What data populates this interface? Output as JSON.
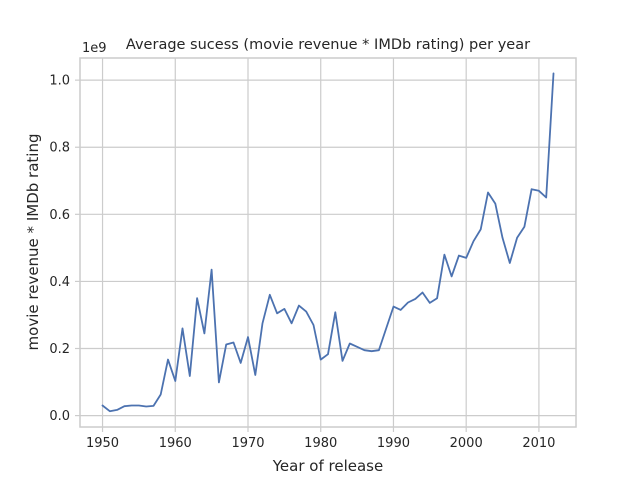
{
  "chart_data": {
    "type": "line",
    "title": "Average sucess (movie revenue * IMDb rating) per year",
    "xlabel": "Year of release",
    "ylabel": "movie revenue * IMDb rating",
    "y_offset_label": "1e9",
    "xlim": [
      1946.9,
      2015.1
    ],
    "ylim": [
      -0.034,
      1.066
    ],
    "x_ticks": [
      1950,
      1960,
      1970,
      1980,
      1990,
      2000,
      2010
    ],
    "x_tick_labels": [
      "1950",
      "1960",
      "1970",
      "1980",
      "1990",
      "2000",
      "2010"
    ],
    "y_ticks": [
      0.0,
      0.2,
      0.4,
      0.6,
      0.8,
      1.0
    ],
    "y_tick_labels": [
      "0.0",
      "0.2",
      "0.4",
      "0.6",
      "0.8",
      "1.0"
    ],
    "grid": true,
    "color": "#4c72b0",
    "series": [
      {
        "x": [
          1950,
          1951,
          1952,
          1953,
          1954,
          1955,
          1956,
          1957,
          1958,
          1959,
          1960,
          1961,
          1962,
          1963,
          1964,
          1965,
          1966,
          1967,
          1968,
          1969,
          1970,
          1971,
          1972,
          1973,
          1974,
          1975,
          1976,
          1977,
          1978,
          1979,
          1980,
          1981,
          1982,
          1983,
          1984,
          1985,
          1986,
          1987,
          1988,
          1989,
          1990,
          1991,
          1992,
          1993,
          1994,
          1995,
          1996,
          1997,
          1998,
          1999,
          2000,
          2001,
          2002,
          2003,
          2004,
          2005,
          2006,
          2007,
          2008,
          2009,
          2010,
          2011,
          2012
        ],
        "y": [
          0.03,
          0.013,
          0.017,
          0.028,
          0.03,
          0.03,
          0.027,
          0.029,
          0.063,
          0.167,
          0.103,
          0.26,
          0.118,
          0.35,
          0.245,
          0.435,
          0.099,
          0.212,
          0.218,
          0.157,
          0.234,
          0.121,
          0.275,
          0.36,
          0.305,
          0.318,
          0.275,
          0.328,
          0.31,
          0.27,
          0.167,
          0.183,
          0.308,
          0.163,
          0.215,
          0.205,
          0.195,
          0.192,
          0.195,
          0.26,
          0.325,
          0.315,
          0.337,
          0.348,
          0.367,
          0.336,
          0.35,
          0.48,
          0.415,
          0.477,
          0.47,
          0.52,
          0.555,
          0.665,
          0.632,
          0.53,
          0.455,
          0.53,
          0.563,
          0.675,
          0.67,
          0.65,
          1.02
        ]
      }
    ]
  }
}
